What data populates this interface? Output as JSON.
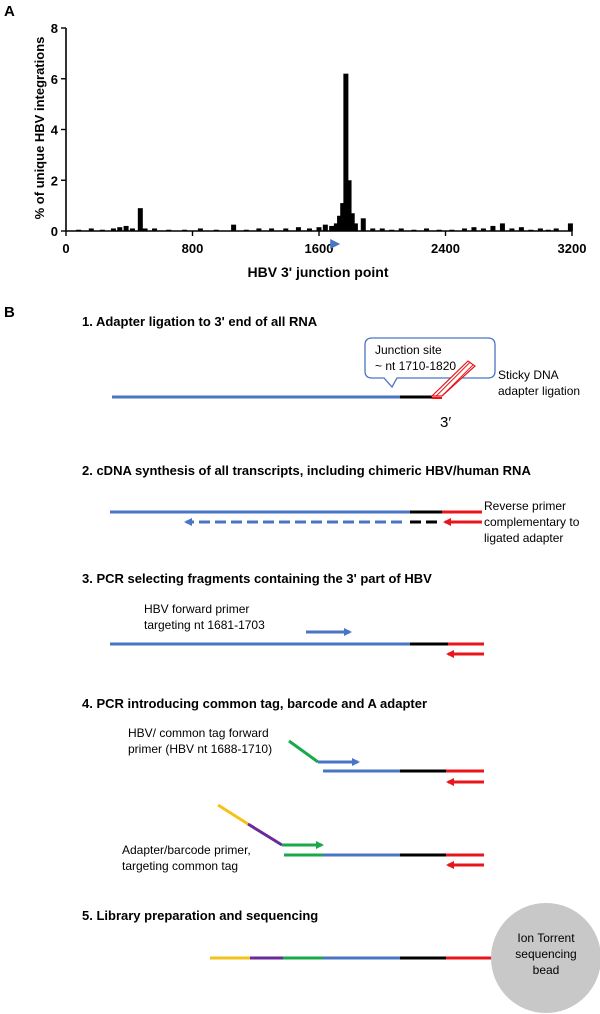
{
  "panel_a": {
    "letter": "A",
    "chart_data": {
      "type": "bar",
      "xlabel": "HBV 3' junction point",
      "ylabel": "% of unique HBV integrations",
      "xlim": [
        0,
        3200
      ],
      "ylim": [
        0,
        8
      ],
      "x_ticks": [
        "0",
        "800",
        "1600",
        "2400",
        "3200"
      ],
      "y_ticks": [
        "0",
        "2",
        "4",
        "6",
        "8"
      ],
      "grid": false,
      "bars": [
        {
          "x": 80,
          "value": 0.05
        },
        {
          "x": 160,
          "value": 0.1
        },
        {
          "x": 230,
          "value": 0.05
        },
        {
          "x": 300,
          "value": 0.1
        },
        {
          "x": 340,
          "value": 0.15
        },
        {
          "x": 380,
          "value": 0.2
        },
        {
          "x": 420,
          "value": 0.1
        },
        {
          "x": 470,
          "value": 0.9
        },
        {
          "x": 500,
          "value": 0.1
        },
        {
          "x": 560,
          "value": 0.1
        },
        {
          "x": 650,
          "value": 0.05
        },
        {
          "x": 750,
          "value": 0.05
        },
        {
          "x": 850,
          "value": 0.1
        },
        {
          "x": 950,
          "value": 0.05
        },
        {
          "x": 1060,
          "value": 0.25
        },
        {
          "x": 1140,
          "value": 0.05
        },
        {
          "x": 1220,
          "value": 0.1
        },
        {
          "x": 1300,
          "value": 0.1
        },
        {
          "x": 1390,
          "value": 0.1
        },
        {
          "x": 1470,
          "value": 0.15
        },
        {
          "x": 1540,
          "value": 0.1
        },
        {
          "x": 1600,
          "value": 0.15
        },
        {
          "x": 1640,
          "value": 0.25
        },
        {
          "x": 1680,
          "value": 0.2
        },
        {
          "x": 1710,
          "value": 0.3
        },
        {
          "x": 1730,
          "value": 0.6
        },
        {
          "x": 1750,
          "value": 1.1
        },
        {
          "x": 1770,
          "value": 6.2
        },
        {
          "x": 1790,
          "value": 2.0
        },
        {
          "x": 1810,
          "value": 0.7
        },
        {
          "x": 1830,
          "value": 0.3
        },
        {
          "x": 1880,
          "value": 0.5
        },
        {
          "x": 1940,
          "value": 0.1
        },
        {
          "x": 2000,
          "value": 0.1
        },
        {
          "x": 2060,
          "value": 0.05
        },
        {
          "x": 2120,
          "value": 0.1
        },
        {
          "x": 2200,
          "value": 0.05
        },
        {
          "x": 2280,
          "value": 0.1
        },
        {
          "x": 2360,
          "value": 0.05
        },
        {
          "x": 2440,
          "value": 0.05
        },
        {
          "x": 2520,
          "value": 0.1
        },
        {
          "x": 2580,
          "value": 0.15
        },
        {
          "x": 2640,
          "value": 0.1
        },
        {
          "x": 2700,
          "value": 0.2
        },
        {
          "x": 2760,
          "value": 0.3
        },
        {
          "x": 2820,
          "value": 0.1
        },
        {
          "x": 2880,
          "value": 0.15
        },
        {
          "x": 2940,
          "value": 0.05
        },
        {
          "x": 3000,
          "value": 0.1
        },
        {
          "x": 3050,
          "value": 0.05
        },
        {
          "x": 3100,
          "value": 0.1
        },
        {
          "x": 3190,
          "value": 0.3
        }
      ],
      "primer_marker_x": 1690
    }
  },
  "panel_b": {
    "letter": "B",
    "step1": {
      "title": "1. Adapter ligation to 3' end of all RNA",
      "callout_line1": "Junction site",
      "callout_line2": "~ nt 1710-1820",
      "side_line1": "Sticky DNA",
      "side_line2": "adapter ligation",
      "end_label": "3′"
    },
    "step2": {
      "title": "2. cDNA synthesis of all transcripts, including chimeric HBV/human RNA",
      "side_line1": "Reverse primer",
      "side_line2": "complementary to",
      "side_line3": "ligated adapter"
    },
    "step3": {
      "title": "3. PCR selecting fragments containing the 3' part of HBV",
      "label_line1": "HBV forward primer",
      "label_line2": "targeting nt 1681-1703"
    },
    "step4": {
      "title": "4. PCR introducing common tag, barcode and A adapter",
      "label_a_line1": "HBV/ common tag forward",
      "label_a_line2": "primer (HBV nt 1688-1710)",
      "label_b_line1": "Adapter/barcode primer,",
      "label_b_line2": "targeting common tag"
    },
    "step5": {
      "title": "5. Library preparation and sequencing",
      "bead_line1": "Ion Torrent",
      "bead_line2": "sequencing",
      "bead_line3": "bead"
    },
    "colors": {
      "hbv": "#4a74c4",
      "human": "#000000",
      "adapter": "#e8161b",
      "common_tag": "#1aa84a",
      "barcode": "#6a2a9a",
      "a_adapter": "#f5c21b",
      "bead": "#c8c8c8"
    }
  }
}
